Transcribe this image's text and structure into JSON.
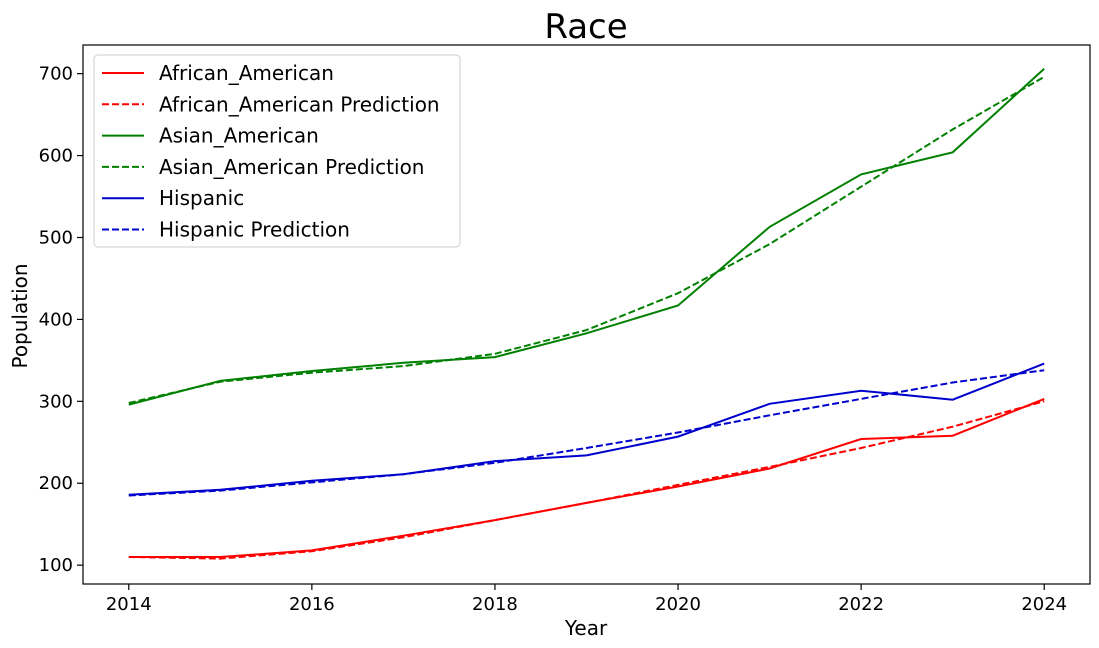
{
  "chart_data": {
    "type": "line",
    "title": "Race",
    "xlabel": "Year",
    "ylabel": "Population",
    "xlim": [
      2013.5,
      2024.5
    ],
    "ylim": [
      77,
      735
    ],
    "x_ticks": [
      2014,
      2016,
      2018,
      2020,
      2022,
      2024
    ],
    "y_ticks": [
      100,
      200,
      300,
      400,
      500,
      600,
      700
    ],
    "grid": false,
    "legend_position": "top-left",
    "x": [
      2014,
      2015,
      2016,
      2017,
      2018,
      2019,
      2020,
      2021,
      2022,
      2023,
      2024
    ],
    "series": [
      {
        "name": "African_American",
        "style": "solid",
        "color": "#ff0000",
        "values": [
          110,
          110,
          118,
          136,
          155,
          176,
          196,
          218,
          254,
          258,
          303
        ]
      },
      {
        "name": "African_American Prediction",
        "style": "dashed",
        "color": "#ff0000",
        "values": [
          110,
          108,
          117,
          134,
          155,
          176,
          198,
          220,
          243,
          269,
          300
        ]
      },
      {
        "name": "Asian_American",
        "style": "solid",
        "color": "#008000",
        "values": [
          296,
          325,
          337,
          347,
          354,
          383,
          417,
          513,
          577,
          604,
          706
        ]
      },
      {
        "name": "Asian_American Prediction",
        "style": "dashed",
        "color": "#008000",
        "values": [
          298,
          324,
          335,
          343,
          358,
          387,
          432,
          492,
          562,
          632,
          696
        ]
      },
      {
        "name": "Hispanic",
        "style": "solid",
        "color": "#0000cc",
        "values": [
          186,
          192,
          203,
          211,
          227,
          234,
          257,
          297,
          313,
          302,
          346
        ]
      },
      {
        "name": "Hispanic Prediction",
        "style": "dashed",
        "color": "#0000cc",
        "values": [
          185,
          191,
          201,
          211,
          225,
          243,
          262,
          283,
          303,
          323,
          338
        ]
      }
    ]
  }
}
